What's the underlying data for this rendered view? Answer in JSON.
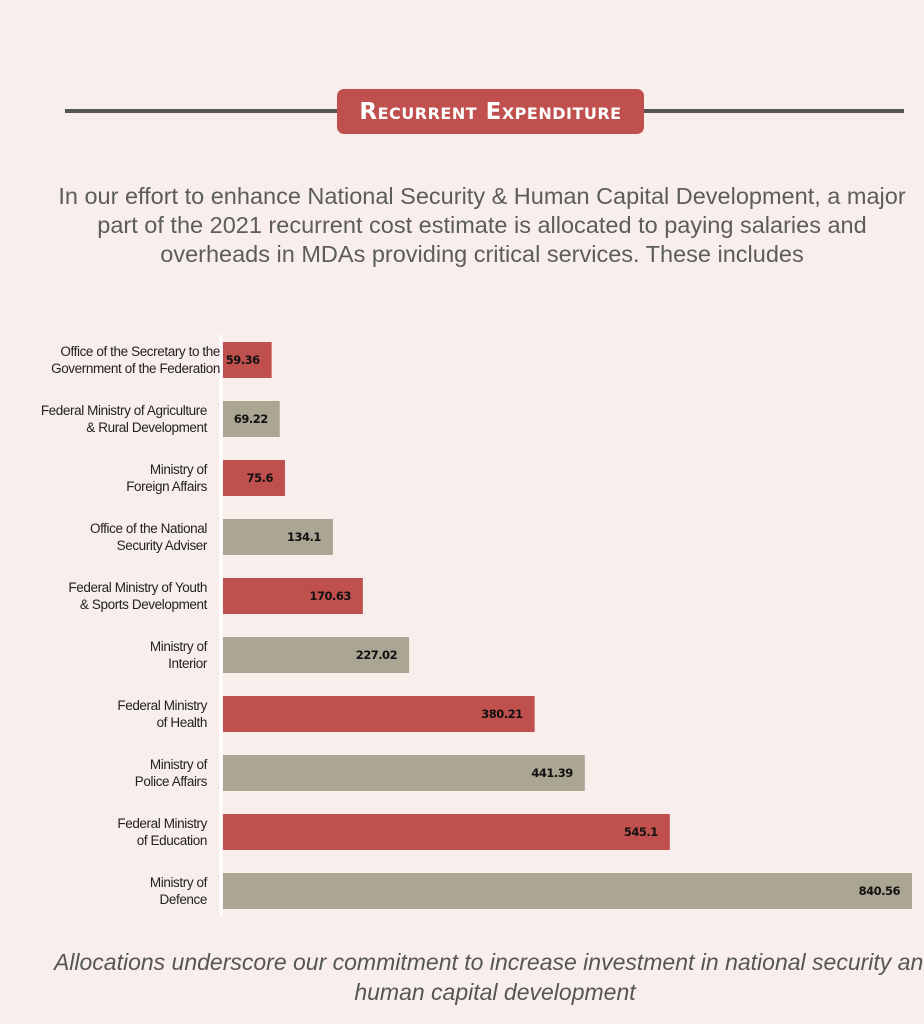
{
  "header": {
    "title": "Recurrent Expenditure"
  },
  "intro": "In our effort to enhance National Security & Human Capital Development, a major part of the 2021 recurrent cost estimate is allocated to paying salaries and overheads in MDAs providing critical services. These includes",
  "footer": "Allocations underscore our commitment to increase investment in national security and human capital development",
  "chart_data": {
    "type": "bar",
    "orientation": "horizontal",
    "categories": [
      [
        "Office of the Secretary to the",
        "Government of the Federation"
      ],
      [
        "Federal Ministry of Agriculture",
        "& Rural Development"
      ],
      [
        "Ministry of",
        "Foreign Affairs"
      ],
      [
        "Office of the National",
        "Security Adviser"
      ],
      [
        "Federal Ministry of Youth",
        "& Sports Development"
      ],
      [
        "Ministry of",
        "Interior"
      ],
      [
        "Federal Ministry",
        "of Health"
      ],
      [
        "Ministry of",
        "Police Affairs"
      ],
      [
        "Federal Ministry",
        "of Education"
      ],
      [
        "Ministry of",
        "Defence"
      ]
    ],
    "values": [
      59.36,
      69.22,
      75.6,
      134.1,
      170.63,
      227.02,
      380.21,
      441.39,
      545.1,
      840.56
    ],
    "value_labels": [
      "59.36",
      "69.22",
      "75.6",
      "134.1",
      "170.63",
      "227.02",
      "380.21",
      "441.39",
      "545.1",
      "840.56"
    ],
    "bar_colors": [
      "#c0504d",
      "#aba593"
    ],
    "xlim": [
      0,
      840.56
    ],
    "grid": false,
    "legend": "none"
  }
}
